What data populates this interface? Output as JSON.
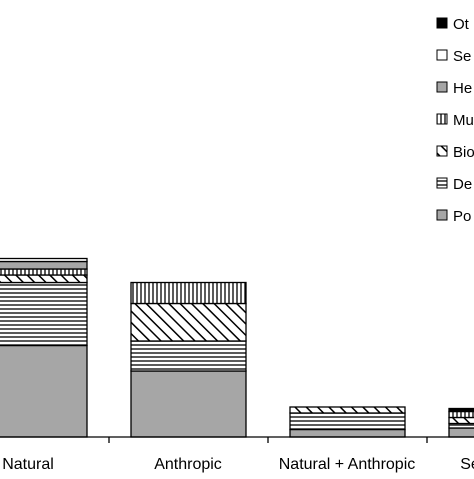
{
  "chart_data": {
    "type": "bar",
    "stacked": true,
    "categories": [
      "Natural",
      "Anthropic",
      "Natural + Anthropic",
      "Se"
    ],
    "series": [
      {
        "name": "Po",
        "values": [
          61,
          44,
          5,
          6
        ],
        "pattern": "gray"
      },
      {
        "name": "De",
        "values": [
          42,
          20,
          11,
          3
        ],
        "pattern": "hlines"
      },
      {
        "name": "Bio",
        "values": [
          5,
          25,
          4,
          4
        ],
        "pattern": "diag"
      },
      {
        "name": "Mu",
        "values": [
          4,
          14,
          0,
          4
        ],
        "pattern": "vlines"
      },
      {
        "name": "He",
        "values": [
          5,
          0,
          0,
          0
        ],
        "pattern": "gray"
      },
      {
        "name": "Se",
        "values": [
          2,
          0,
          0,
          0
        ],
        "pattern": "white"
      },
      {
        "name": "Ot",
        "values": [
          0,
          0,
          0,
          2
        ],
        "pattern": "black"
      }
    ],
    "legend_labels": [
      "Ot",
      "Se",
      "He",
      "Mu",
      "Bio",
      "De",
      "Po"
    ],
    "legend_position": "right",
    "grid": false,
    "ylim": [
      0,
      120
    ],
    "colors": {
      "gray": "#a6a6a6",
      "black": "#000000",
      "white": "#ffffff",
      "axis": "#000000"
    }
  }
}
